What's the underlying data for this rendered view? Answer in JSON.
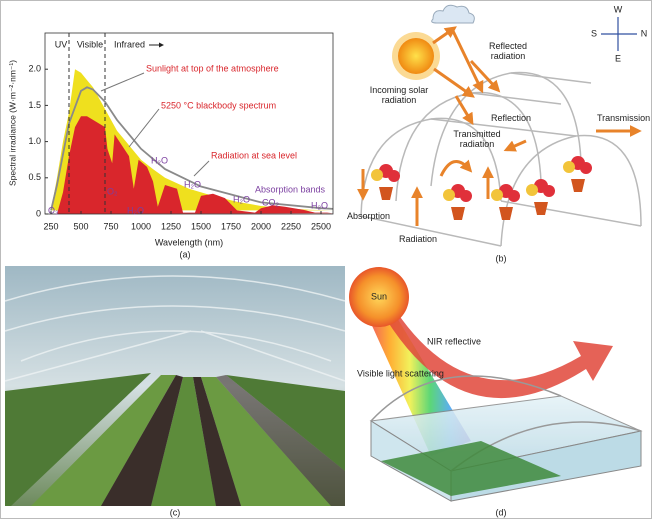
{
  "chart_data": {
    "type": "area",
    "caption": "(a)",
    "xlabel": "Wavelength (nm)",
    "ylabel": "Spectral irradiance (W·m⁻²·nm⁻¹)",
    "xlim": [
      200,
      2600
    ],
    "ylim": [
      0,
      2.5
    ],
    "xticks": [
      250,
      500,
      750,
      1000,
      1250,
      1500,
      1750,
      2000,
      2250,
      2500
    ],
    "yticks": [
      0,
      0.5,
      {
        "value": 1,
        "label": "1.0"
      },
      1.5,
      {
        "value": 2,
        "label": "2.0"
      }
    ],
    "band_edges": [
      400,
      700
    ],
    "series": [
      {
        "name": "Sunlight at top of the atmosphere",
        "kind": "area",
        "color": "#efe01e",
        "x": [
          250,
          300,
          350,
          400,
          450,
          500,
          550,
          600,
          700,
          800,
          900,
          1000,
          1100,
          1200,
          1400,
          1600,
          1800,
          2000,
          2200,
          2400,
          2600
        ],
        "values": [
          0.05,
          0.5,
          1.0,
          1.4,
          2.0,
          1.95,
          1.85,
          1.75,
          1.45,
          1.15,
          0.95,
          0.75,
          0.62,
          0.5,
          0.35,
          0.25,
          0.17,
          0.11,
          0.08,
          0.06,
          0.05
        ]
      },
      {
        "name": "Radiation at sea level",
        "kind": "area",
        "color": "#d9262c",
        "x": [
          300,
          350,
          400,
          450,
          500,
          550,
          600,
          700,
          720,
          760,
          780,
          900,
          940,
          980,
          1050,
          1100,
          1140,
          1200,
          1300,
          1350,
          1450,
          1500,
          1600,
          1700,
          1800,
          1950,
          2000,
          2100,
          2200,
          2350,
          2450,
          2550,
          2600
        ],
        "values": [
          0,
          0.3,
          0.8,
          1.2,
          1.35,
          1.35,
          1.3,
          1.2,
          0.9,
          0.7,
          1.1,
          0.8,
          0.35,
          0.75,
          0.65,
          0.45,
          0.1,
          0.4,
          0.35,
          0.02,
          0.02,
          0.25,
          0.28,
          0.22,
          0.05,
          0.02,
          0.08,
          0.12,
          0.1,
          0.06,
          0.02,
          0.02,
          0.01
        ]
      },
      {
        "name": "5250 °C blackbody spectrum",
        "kind": "line",
        "color": "#8a8a8a",
        "x": [
          250,
          300,
          400,
          500,
          550,
          600,
          700,
          800,
          1000,
          1200,
          1500,
          2000,
          2500,
          2600
        ],
        "values": [
          0.05,
          0.4,
          1.25,
          1.7,
          1.75,
          1.72,
          1.55,
          1.3,
          0.9,
          0.62,
          0.38,
          0.16,
          0.08,
          0.07
        ]
      }
    ],
    "annotations": [
      "UV",
      "Visible",
      "Infrared",
      "O₃",
      "O₂",
      "H₂O",
      "H₂O",
      "H₂O",
      "H₂O",
      "H₂O",
      "CO₂",
      "Absorption bands"
    ]
  },
  "panel_b": {
    "caption": "(b)",
    "labels": [
      "Reflected radiation",
      "Incoming solar radiation",
      "Reflection",
      "Transmission",
      "Transmitted radiation",
      "Absorption",
      "Radiation"
    ],
    "compass": [
      "W",
      "N",
      "S",
      "E"
    ]
  },
  "panel_c": {
    "caption": "(c)"
  },
  "panel_d": {
    "caption": "(d)",
    "labels": [
      "Sun",
      "NIR reflective",
      "Visible light scattering"
    ]
  }
}
